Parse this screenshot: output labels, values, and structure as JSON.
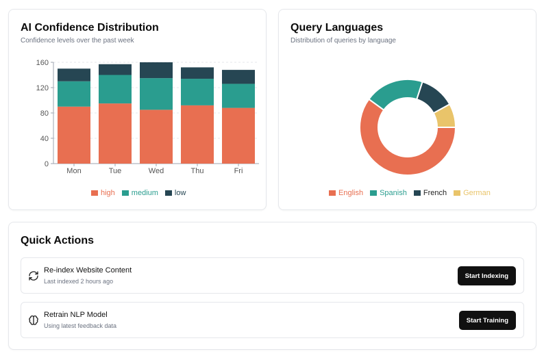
{
  "confidence": {
    "title": "AI Confidence Distribution",
    "subtitle": "Confidence levels over the past week"
  },
  "languages": {
    "title": "Query Languages",
    "subtitle": "Distribution of queries by language"
  },
  "quick_actions": {
    "title": "Quick Actions",
    "items": [
      {
        "title": "Re-index Website Content",
        "subtitle": "Last indexed 2 hours ago",
        "button": "Start Indexing",
        "icon": "refresh-icon"
      },
      {
        "title": "Retrain NLP Model",
        "subtitle": "Using latest feedback data",
        "button": "Start Training",
        "icon": "brain-icon"
      }
    ]
  },
  "colors": {
    "high": "#e86f51",
    "medium": "#2a9d8f",
    "low": "#264653",
    "german": "#e9c46a"
  },
  "chart_data": [
    {
      "type": "bar",
      "stacked": true,
      "categories": [
        "Mon",
        "Tue",
        "Wed",
        "Thu",
        "Fri"
      ],
      "series": [
        {
          "name": "high",
          "values": [
            90,
            95,
            85,
            92,
            88
          ],
          "color": "#e86f51"
        },
        {
          "name": "medium",
          "values": [
            40,
            45,
            50,
            42,
            38
          ],
          "color": "#2a9d8f"
        },
        {
          "name": "low",
          "values": [
            20,
            17,
            25,
            18,
            22
          ],
          "color": "#264653"
        }
      ],
      "yticks": [
        0,
        40,
        80,
        120,
        160
      ],
      "ylim": [
        0,
        160
      ],
      "grid": true,
      "legend": "bottom"
    },
    {
      "type": "pie",
      "donut": true,
      "series": [
        {
          "name": "English",
          "value": 60,
          "color": "#e86f51"
        },
        {
          "name": "Spanish",
          "value": 20,
          "color": "#2a9d8f"
        },
        {
          "name": "French",
          "value": 12,
          "color": "#264653"
        },
        {
          "name": "German",
          "value": 8,
          "color": "#e9c46a"
        }
      ],
      "legend": "bottom"
    }
  ]
}
